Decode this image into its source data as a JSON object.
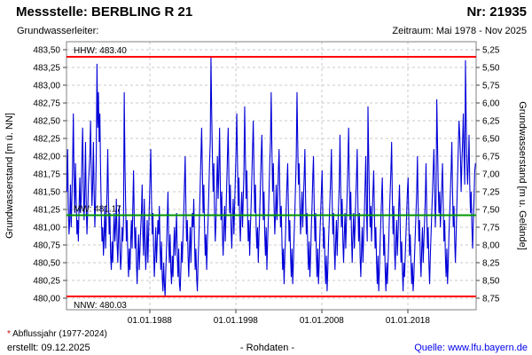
{
  "header": {
    "title": "Messstelle: BERBLING R 21",
    "number": "Nr: 21935",
    "aquifer_label": "Grundwasserleiter:",
    "period": "Zeitraum: Mai 1978 - Nov 2025"
  },
  "chart_data": {
    "type": "line",
    "grid": true,
    "y_left": {
      "label": "Grundwasserstand [m ü. NN]",
      "min": 479.84,
      "max": 483.61,
      "ticks": [
        483.5,
        483.25,
        483.0,
        482.75,
        482.5,
        482.25,
        482.0,
        481.75,
        481.5,
        481.25,
        481.0,
        480.75,
        480.5,
        480.25,
        480.0
      ]
    },
    "y_right": {
      "label": "Grundwasserstand [m u. Gelände]",
      "ticks": [
        5.25,
        5.5,
        5.75,
        6.0,
        6.25,
        6.5,
        6.75,
        7.0,
        7.25,
        7.5,
        7.75,
        8.0,
        8.25,
        8.5,
        8.75
      ]
    },
    "x_axis": {
      "min": 1978.33,
      "max": 2025.95,
      "tick_values": [
        1988,
        1998,
        2008,
        2018
      ],
      "tick_labels": [
        "01.01.1988",
        "01.01.1998",
        "01.01.2008",
        "01.01.2018"
      ]
    },
    "reference_lines": [
      {
        "name": "HHW",
        "value": 483.4,
        "label": "HHW: 483.40",
        "color": "#ff0000",
        "label_below": false
      },
      {
        "name": "MW",
        "value": 481.17,
        "label": "MW: 481.17",
        "color": "#009900",
        "label_below": false
      },
      {
        "name": "NNW",
        "value": 480.03,
        "label": "NNW: 480.03",
        "color": "#ff0000",
        "label_below": true
      }
    ],
    "series": {
      "name": "Grundwasserstand Rohdaten",
      "color": "#0000d8",
      "start": 1978.375,
      "step": 0.0833333,
      "values": [
        481.5,
        482.1,
        481.3,
        480.9,
        481.1,
        481.6,
        481.0,
        481.4,
        481.9,
        482.6,
        481.7,
        481.2,
        481.9,
        481.4,
        480.9,
        481.1,
        480.8,
        481.3,
        481.7,
        481.2,
        481.4,
        482.0,
        482.4,
        481.6,
        481.1,
        481.5,
        482.2,
        481.3,
        480.9,
        481.2,
        481.6,
        481.8,
        482.0,
        482.5,
        481.8,
        481.3,
        481.6,
        482.2,
        481.5,
        481.0,
        481.4,
        482.0,
        483.3,
        482.4,
        482.9,
        482.2,
        482.6,
        481.8,
        481.2,
        480.8,
        481.0,
        480.6,
        480.9,
        481.3,
        480.7,
        481.1,
        481.5,
        482.1,
        481.4,
        480.9,
        481.2,
        480.6,
        480.4,
        480.8,
        480.5,
        480.9,
        481.2,
        480.8,
        481.0,
        481.4,
        480.8,
        480.5,
        480.9,
        481.3,
        480.7,
        480.4,
        480.6,
        481.0,
        480.8,
        481.1,
        482.9,
        481.9,
        481.3,
        480.8,
        481.1,
        480.6,
        480.3,
        480.7,
        480.4,
        480.8,
        481.1,
        480.7,
        481.3,
        481.8,
        481.1,
        480.7,
        481.0,
        480.5,
        480.2,
        480.6,
        480.9,
        480.4,
        480.7,
        481.0,
        481.2,
        481.6,
        480.9,
        480.6,
        481.4,
        480.8,
        480.4,
        480.7,
        481.1,
        480.5,
        480.9,
        481.3,
        481.7,
        482.1,
        481.4,
        480.9,
        481.2,
        480.7,
        480.3,
        480.6,
        481.0,
        480.5,
        480.8,
        481.1,
        480.9,
        481.3,
        480.7,
        480.4,
        480.8,
        480.3,
        480.1,
        480.5,
        480.2,
        480.03,
        480.4,
        480.7,
        481.1,
        481.5,
        480.8,
        480.5,
        480.9,
        480.4,
        480.2,
        480.6,
        480.3,
        480.7,
        481.0,
        480.6,
        480.9,
        481.2,
        480.6,
        480.3,
        480.7,
        480.2,
        480.1,
        480.4,
        480.8,
        480.5,
        480.9,
        481.2,
        481.6,
        482.0,
        481.3,
        480.8,
        481.1,
        480.6,
        480.3,
        480.7,
        481.0,
        480.5,
        480.9,
        481.2,
        481.0,
        481.4,
        480.8,
        480.4,
        480.7,
        480.3,
        480.1,
        480.5,
        480.8,
        481.2,
        481.6,
        482.0,
        482.4,
        481.8,
        481.2,
        481.6,
        481.0,
        480.6,
        480.9,
        480.4,
        480.8,
        481.1,
        481.5,
        481.9,
        482.2,
        483.4,
        482.6,
        482.0,
        481.5,
        481.9,
        481.2,
        480.8,
        481.1,
        481.6,
        482.0,
        481.4,
        481.8,
        482.4,
        481.6,
        481.1,
        481.5,
        480.9,
        480.6,
        481.0,
        481.3,
        480.8,
        481.2,
        481.6,
        482.0,
        482.4,
        481.7,
        481.2,
        481.6,
        481.0,
        480.7,
        481.1,
        481.4,
        480.9,
        481.3,
        481.7,
        482.1,
        482.6,
        481.9,
        481.3,
        481.7,
        481.1,
        480.8,
        481.2,
        481.5,
        481.0,
        481.4,
        481.8,
        482.7,
        482.0,
        481.4,
        481.8,
        481.2,
        480.8,
        481.1,
        480.6,
        481.0,
        481.3,
        481.7,
        482.1,
        482.5,
        481.8,
        481.2,
        481.6,
        481.0,
        480.7,
        481.0,
        480.5,
        480.9,
        481.2,
        481.6,
        482.0,
        482.3,
        481.7,
        481.1,
        481.5,
        480.9,
        480.6,
        481.0,
        480.4,
        480.8,
        481.1,
        481.5,
        481.9,
        482.2,
        482.9,
        482.1,
        481.5,
        481.9,
        481.3,
        480.9,
        481.2,
        481.6,
        481.1,
        481.4,
        481.8,
        482.1,
        481.5,
        481.0,
        481.3,
        480.8,
        480.4,
        480.7,
        480.2,
        480.6,
        480.9,
        481.3,
        481.6,
        481.9,
        481.3,
        480.8,
        481.1,
        480.6,
        480.3,
        480.7,
        480.2,
        480.5,
        480.9,
        481.2,
        481.6,
        482.0,
        482.9,
        482.2,
        481.6,
        481.9,
        481.3,
        480.9,
        481.2,
        481.5,
        481.0,
        481.4,
        481.7,
        482.1,
        481.4,
        480.9,
        481.2,
        480.7,
        480.4,
        480.8,
        480.3,
        480.6,
        481.0,
        481.3,
        481.7,
        482.0,
        481.3,
        480.8,
        481.2,
        480.6,
        480.3,
        480.7,
        480.2,
        480.5,
        480.9,
        481.2,
        481.5,
        481.8,
        481.2,
        480.7,
        481.0,
        480.5,
        480.2,
        480.6,
        480.1,
        480.4,
        480.8,
        481.1,
        481.4,
        481.7,
        482.1,
        481.4,
        480.9,
        481.2,
        480.7,
        480.4,
        480.8,
        481.1,
        480.6,
        481.0,
        481.3,
        481.6,
        482.3,
        481.5,
        481.0,
        481.4,
        480.8,
        480.5,
        480.9,
        481.2,
        480.7,
        481.1,
        481.5,
        481.9,
        482.4,
        481.6,
        481.1,
        481.5,
        480.9,
        480.5,
        480.9,
        481.2,
        480.7,
        481.0,
        481.4,
        481.7,
        482.1,
        481.3,
        480.8,
        481.2,
        480.6,
        480.3,
        480.7,
        481.0,
        480.5,
        480.9,
        481.2,
        481.6,
        482.0,
        481.2,
        480.8,
        482.7,
        482.0,
        481.4,
        481.0,
        481.3,
        480.8,
        481.2,
        481.5,
        481.8,
        481.2,
        480.7,
        481.0,
        480.5,
        480.2,
        480.6,
        480.1,
        480.4,
        480.8,
        481.1,
        481.4,
        481.7,
        481.1,
        480.6,
        480.9,
        480.4,
        480.1,
        480.5,
        480.2,
        480.5,
        480.8,
        481.2,
        481.5,
        481.8,
        482.2,
        481.4,
        480.9,
        481.3,
        480.7,
        480.4,
        480.8,
        481.1,
        480.6,
        480.9,
        481.3,
        481.6,
        481.0,
        480.5,
        480.8,
        480.4,
        480.1,
        480.5,
        480.3,
        480.6,
        480.9,
        481.2,
        481.5,
        481.7,
        481.1,
        480.6,
        480.9,
        480.5,
        480.2,
        480.5,
        480.1,
        480.3,
        480.6,
        480.9,
        481.2,
        481.5,
        482.0,
        481.3,
        480.8,
        481.1,
        480.6,
        480.3,
        480.7,
        481.0,
        480.5,
        480.8,
        481.1,
        481.4,
        481.9,
        481.2,
        480.7,
        481.0,
        480.5,
        480.2,
        480.6,
        480.9,
        481.2,
        481.5,
        481.8,
        482.1,
        481.5,
        481.0,
        481.4,
        482.8,
        482.2,
        481.6,
        481.2,
        481.5,
        481.0,
        481.3,
        481.6,
        481.9,
        481.3,
        480.8,
        481.1,
        480.6,
        480.3,
        480.7,
        480.2,
        480.5,
        480.9,
        481.2,
        481.5,
        481.8,
        482.2,
        481.5,
        481.0,
        481.3,
        480.8,
        480.5,
        480.9,
        481.3,
        481.7,
        482.1,
        482.5,
        482.3,
        482.0,
        481.5,
        481.9,
        482.2,
        482.6,
        482.0,
        481.6,
        483.35,
        482.5,
        481.9,
        481.6,
        481.9,
        482.3,
        481.6,
        481.2,
        481.5,
        481.0,
        480.7,
        481.1,
        481.4,
        481.8,
        481.9
      ]
    }
  },
  "footer": {
    "footnote_asterisk": "*",
    "footnote_text": " Abflussjahr (1977-2024)",
    "created": "erstellt: 09.12.2025",
    "center_label": "- Rohdaten -",
    "source_prefix": "Quelle: ",
    "source_link": "www.lfu.bayern.de"
  }
}
